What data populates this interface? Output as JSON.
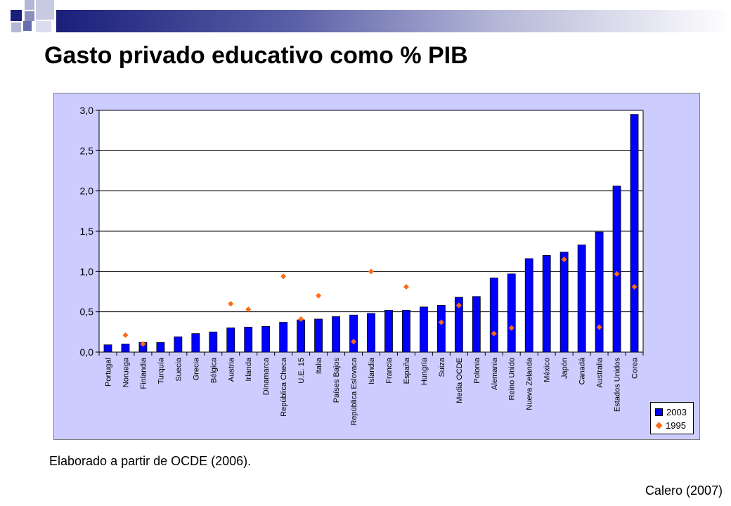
{
  "slide": {
    "title": "Gasto privado educativo como % PIB",
    "source_note": "Elaborado a partir de OCDE (2006).",
    "credit": "Calero (2007)"
  },
  "colors": {
    "bar_2003": "#0000ff",
    "marker_1995": "#ff6a13",
    "plot_background": "#ccccff",
    "title_bar_dark": "#1a1f7a"
  },
  "chart_data": {
    "type": "bar",
    "title": "",
    "xlabel": "",
    "ylabel": "",
    "ylim": [
      0,
      3
    ],
    "yticks": [
      "0,0",
      "0,5",
      "1,0",
      "1,5",
      "2,0",
      "2,5",
      "3,0"
    ],
    "grid": true,
    "legend_position": "bottom-right",
    "categories": [
      "Portugal",
      "Noruega",
      "Finlandia",
      "Turquía",
      "Suecia",
      "Grecia",
      "Bélgica",
      "Austria",
      "Irlanda",
      "Dinamarca",
      "República Checa",
      "U.E. 15",
      "Italia",
      "Países Bajos",
      "República Eslovaca",
      "Islandia",
      "Francia",
      "España",
      "Hungría",
      "Suiza",
      "Media OCDE",
      "Polonia",
      "Alemania",
      "Reino Unido",
      "Nueva Zelanda",
      "México",
      "Japón",
      "Canadá",
      "Australia",
      "Estados Unidos",
      "Corea"
    ],
    "series": [
      {
        "name": "2003",
        "type": "bar",
        "values": [
          0.09,
          0.1,
          0.12,
          0.12,
          0.19,
          0.23,
          0.25,
          0.3,
          0.31,
          0.32,
          0.37,
          0.4,
          0.41,
          0.44,
          0.46,
          0.48,
          0.52,
          0.52,
          0.56,
          0.58,
          0.68,
          0.69,
          0.92,
          0.97,
          1.16,
          1.2,
          1.24,
          1.33,
          1.49,
          2.06,
          2.95
        ]
      },
      {
        "name": "1995",
        "type": "marker",
        "values": [
          null,
          0.21,
          0.1,
          null,
          null,
          null,
          null,
          0.6,
          0.53,
          null,
          0.94,
          0.41,
          0.7,
          null,
          0.13,
          1.0,
          null,
          0.81,
          null,
          0.37,
          0.58,
          null,
          0.23,
          0.3,
          null,
          null,
          1.15,
          null,
          0.31,
          0.97,
          0.81
        ]
      }
    ]
  }
}
